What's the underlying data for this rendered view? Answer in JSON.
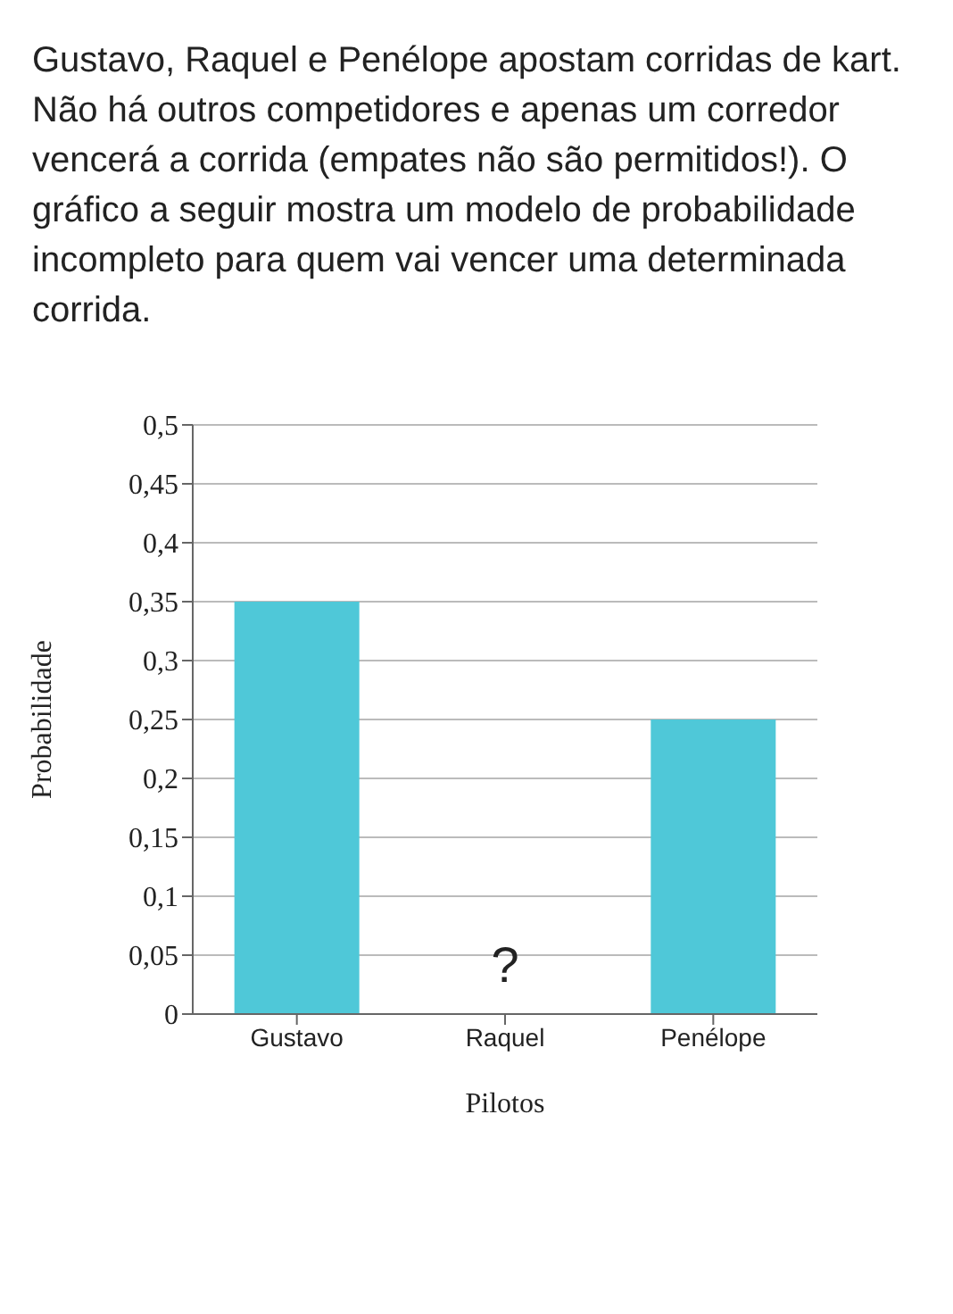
{
  "chart_data": {
    "type": "bar",
    "title": "Gustavo, Raquel e Penélope apostam corridas de kart. Não há outros competidores e apenas um corredor vencerá a corrida (empates não são permitidos!). O gráfico a seguir mostra um modelo de probabilidade incompleto para quem vai vencer uma determinada corrida.",
    "xlabel": "Pilotos",
    "ylabel": "Probabilidade",
    "categories": [
      "Gustavo",
      "Raquel",
      "Penélope"
    ],
    "values": [
      0.35,
      null,
      0.25
    ],
    "color": "#4fc8d8",
    "ylim": [
      0,
      0.5
    ],
    "yticks": [
      0,
      {
        "value": 0.05,
        "label": "0,05"
      },
      {
        "value": 0.1,
        "label": "0,1"
      },
      {
        "value": 0.15,
        "label": "0,15"
      },
      {
        "value": 0.2,
        "label": "0,2"
      },
      {
        "value": 0.25,
        "label": "0,25"
      },
      {
        "value": 0.3,
        "label": "0,3"
      },
      {
        "value": 0.35,
        "label": "0,35"
      },
      {
        "value": 0.4,
        "label": "0,4"
      },
      {
        "value": 0.45,
        "label": "0,45"
      },
      {
        "value": 0.5,
        "label": "0,5"
      }
    ],
    "grid": "y",
    "annotations": [
      "?"
    ]
  }
}
